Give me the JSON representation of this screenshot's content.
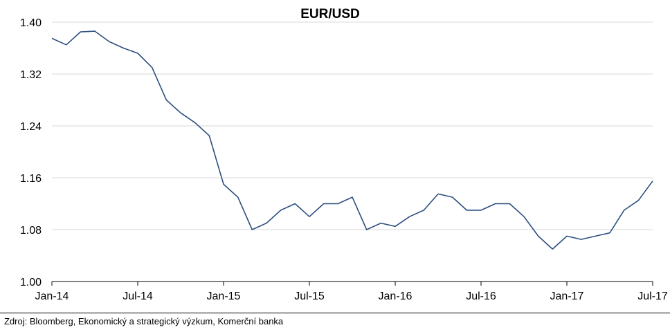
{
  "source_note": "Zdroj: Bloomberg, Ekonomický a strategický výzkum, Komerční banka",
  "chart_data": {
    "type": "line",
    "title": "EUR/USD",
    "xlabel": "",
    "ylabel": "",
    "x_ticks": [
      "Jan-14",
      "Jul-14",
      "Jan-15",
      "Jul-15",
      "Jan-16",
      "Jul-16",
      "Jan-17",
      "Jul-17"
    ],
    "y_ticks": [
      "1.00",
      "1.08",
      "1.16",
      "1.24",
      "1.32",
      "1.40"
    ],
    "ylim": [
      1.0,
      1.4
    ],
    "xlim": [
      "2014-01",
      "2017-07"
    ],
    "grid": "horizontal",
    "line_color": "#2d4e7e",
    "series": [
      {
        "x": [
          "2014-01",
          "2014-02",
          "2014-03",
          "2014-04",
          "2014-05",
          "2014-06",
          "2014-07",
          "2014-08",
          "2014-09",
          "2014-10",
          "2014-11",
          "2014-12",
          "2015-01",
          "2015-02",
          "2015-03",
          "2015-04",
          "2015-05",
          "2015-06",
          "2015-07",
          "2015-08",
          "2015-09",
          "2015-10",
          "2015-11",
          "2015-12",
          "2016-01",
          "2016-02",
          "2016-03",
          "2016-04",
          "2016-05",
          "2016-06",
          "2016-07",
          "2016-08",
          "2016-09",
          "2016-10",
          "2016-11",
          "2016-12",
          "2017-01",
          "2017-02",
          "2017-03",
          "2017-04",
          "2017-05",
          "2017-06",
          "2017-07"
        ],
        "values": [
          1.375,
          1.365,
          1.385,
          1.386,
          1.37,
          1.36,
          1.352,
          1.33,
          1.28,
          1.26,
          1.245,
          1.225,
          1.15,
          1.13,
          1.08,
          1.09,
          1.11,
          1.12,
          1.1,
          1.12,
          1.12,
          1.13,
          1.08,
          1.09,
          1.085,
          1.1,
          1.11,
          1.135,
          1.13,
          1.11,
          1.11,
          1.12,
          1.12,
          1.1,
          1.07,
          1.05,
          1.07,
          1.065,
          1.07,
          1.075,
          1.11,
          1.125,
          1.155
        ]
      }
    ]
  }
}
